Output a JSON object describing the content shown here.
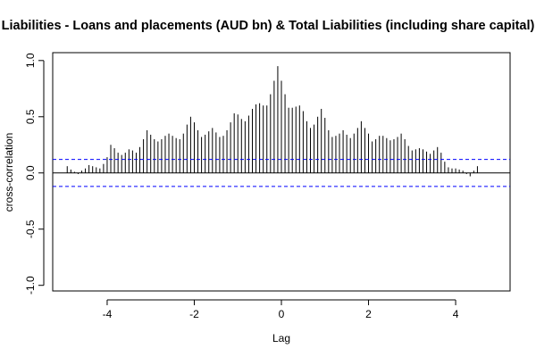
{
  "chart_data": {
    "type": "bar",
    "title": "Liabilities - Loans and placements (AUD bn) & Total Liabilities (including share capital)",
    "xlabel": "Lag",
    "ylabel": "cross-correlation",
    "xlim": [
      -5.25,
      5.25
    ],
    "ylim": [
      -1.05,
      1.07
    ],
    "x_ticks": [
      -4,
      -2,
      0,
      2,
      4
    ],
    "x_tick_labels": [
      "-4",
      "-2",
      "0",
      "2",
      "4"
    ],
    "y_ticks": [
      -1.0,
      -0.5,
      0.0,
      0.5,
      1.0
    ],
    "y_tick_labels": [
      "-1.0",
      "-0.5",
      "0.0",
      "0.5",
      "1.0"
    ],
    "confidence_bound": 0.12,
    "zero_line": 0,
    "bar_color": "#000000",
    "ci_color": "#0000ff",
    "lag_step": 0.0833333,
    "lag_min": -4.9167,
    "values": [
      0.06,
      0.03,
      0.01,
      -0.01,
      0.02,
      0.04,
      0.07,
      0.06,
      0.05,
      0.04,
      0.08,
      0.14,
      0.25,
      0.22,
      0.18,
      0.16,
      0.18,
      0.21,
      0.2,
      0.18,
      0.23,
      0.3,
      0.38,
      0.34,
      0.3,
      0.28,
      0.3,
      0.33,
      0.35,
      0.33,
      0.31,
      0.3,
      0.35,
      0.43,
      0.5,
      0.45,
      0.38,
      0.32,
      0.34,
      0.37,
      0.4,
      0.36,
      0.32,
      0.33,
      0.38,
      0.45,
      0.53,
      0.52,
      0.48,
      0.46,
      0.51,
      0.57,
      0.61,
      0.62,
      0.6,
      0.6,
      0.7,
      0.82,
      0.95,
      0.82,
      0.7,
      0.58,
      0.58,
      0.59,
      0.6,
      0.55,
      0.46,
      0.4,
      0.43,
      0.5,
      0.57,
      0.49,
      0.38,
      0.32,
      0.33,
      0.35,
      0.38,
      0.34,
      0.31,
      0.35,
      0.4,
      0.46,
      0.4,
      0.35,
      0.28,
      0.3,
      0.33,
      0.33,
      0.31,
      0.29,
      0.3,
      0.32,
      0.35,
      0.3,
      0.24,
      0.2,
      0.21,
      0.22,
      0.21,
      0.19,
      0.17,
      0.2,
      0.23,
      0.18,
      0.1,
      0.05,
      0.04,
      0.04,
      0.03,
      0.02,
      -0.01,
      -0.03,
      0.02,
      0.06
    ]
  }
}
